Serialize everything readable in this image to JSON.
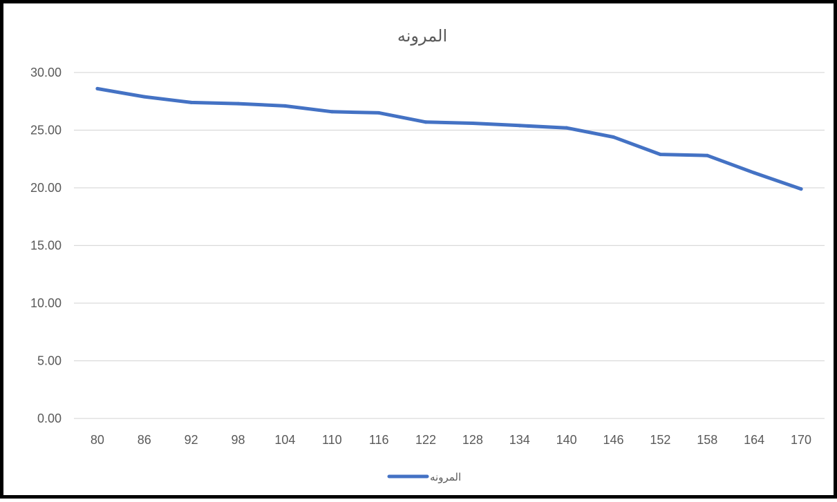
{
  "chart_data": {
    "type": "line",
    "title": "المرونه",
    "x": [
      "80",
      "86",
      "92",
      "98",
      "104",
      "110",
      "116",
      "122",
      "128",
      "134",
      "140",
      "146",
      "152",
      "158",
      "164",
      "170"
    ],
    "series": [
      {
        "name": "المرونه",
        "values": [
          28.6,
          27.9,
          27.4,
          27.3,
          27.1,
          26.6,
          26.5,
          25.7,
          25.6,
          25.4,
          25.2,
          24.4,
          22.9,
          22.8,
          21.3,
          19.9
        ]
      }
    ],
    "yticks": [
      "0.00",
      "5.00",
      "10.00",
      "15.00",
      "20.00",
      "25.00",
      "30.00"
    ],
    "ylim": [
      0,
      30
    ],
    "grid": true,
    "legend_position": "bottom",
    "colors": {
      "series": "#4472c4",
      "grid": "#d9d9d9",
      "text": "#595959"
    }
  }
}
